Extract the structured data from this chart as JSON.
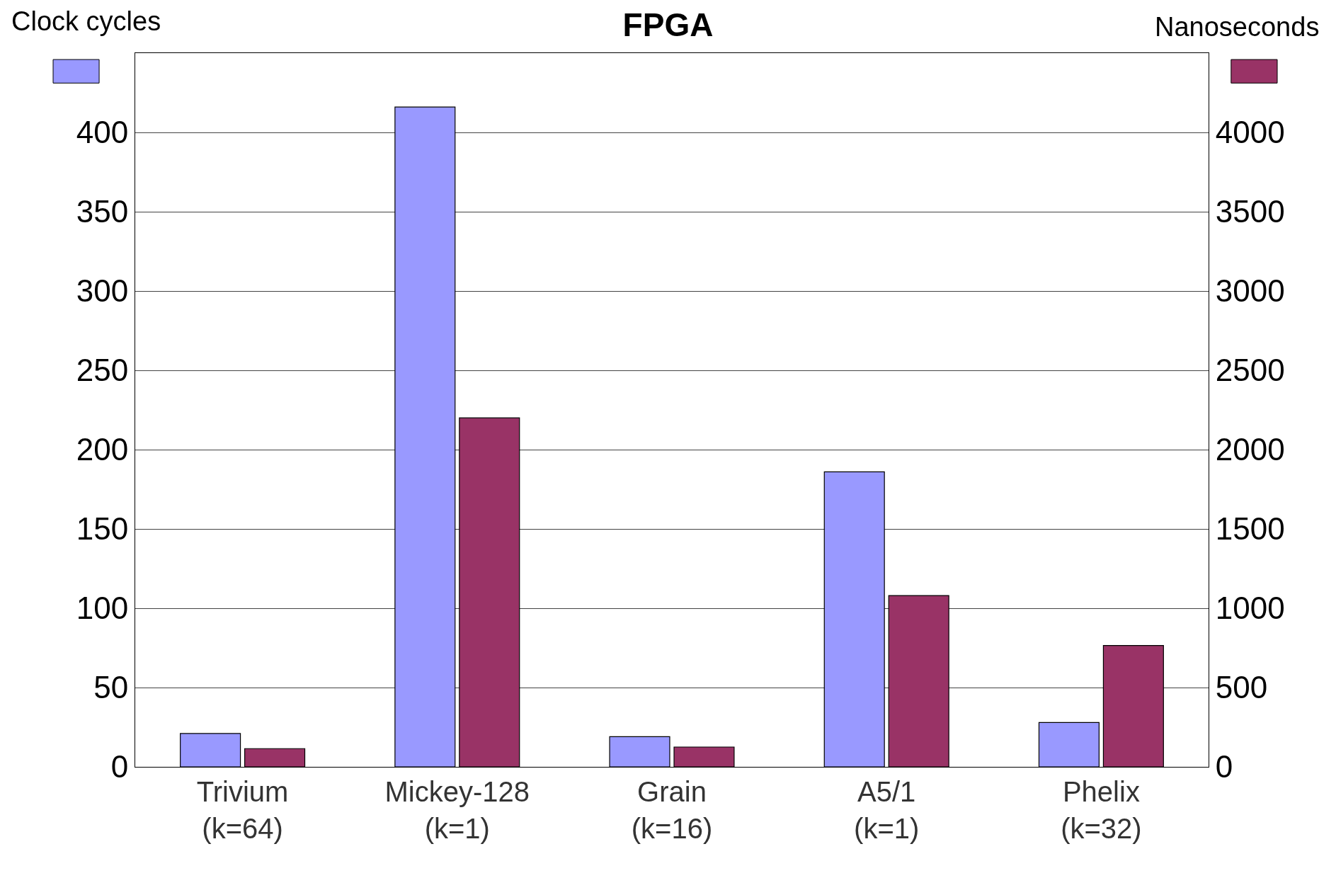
{
  "chart_data": {
    "type": "bar",
    "title": "FPGA",
    "ylabel": "Clock cycles",
    "y2label": "Nanoseconds",
    "categories": [
      "Trivium\n(k=64)",
      "Mickey-128\n(k=1)",
      "Grain\n(k=16)",
      "A5/1\n(k=1)",
      "Phelix\n(k=32)"
    ],
    "series": [
      {
        "color": "#9999ff",
        "values": [
          21,
          416,
          19,
          186,
          28
        ]
      },
      {
        "color": "#993366",
        "axis": "y2",
        "values": [
          115,
          2200,
          125,
          1080,
          765
        ]
      }
    ],
    "ylim": [
      0,
      450
    ],
    "yticks": [
      0,
      50,
      100,
      150,
      200,
      250,
      300,
      350,
      400
    ],
    "y2lim": [
      0,
      4500
    ],
    "y2ticks": [
      0,
      500,
      1000,
      1500,
      2000,
      2500,
      3000,
      3500,
      4000
    ],
    "grid": "y"
  }
}
